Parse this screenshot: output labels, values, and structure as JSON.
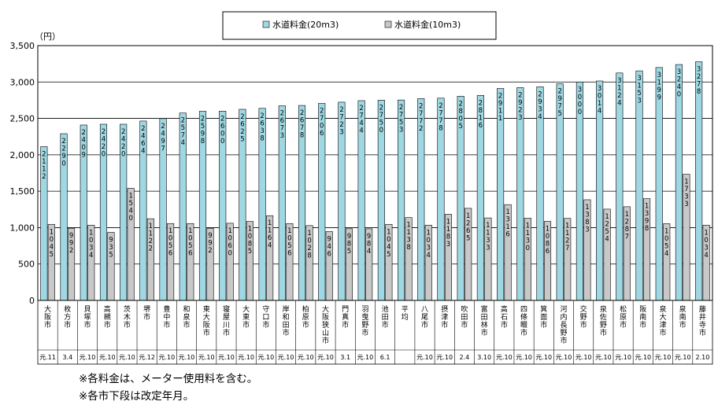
{
  "chart_data": {
    "type": "bar",
    "y_unit": "（円）",
    "ylim": [
      0,
      3500
    ],
    "yticks": [
      0,
      500,
      1000,
      1500,
      2000,
      2500,
      3000,
      3500
    ],
    "ytick_labels": [
      "0",
      "500",
      "1,000",
      "1,500",
      "2,000",
      "2,500",
      "3,000",
      "3,500"
    ],
    "grid": true,
    "legend_position": "top",
    "categories": [
      "大阪市",
      "枚方市",
      "貝塚市",
      "高槻市",
      "茨木市",
      "堺市",
      "豊中市",
      "和泉市",
      "東大阪市",
      "寝屋川市",
      "大東市",
      "守口市",
      "岸和田市",
      "柏原市",
      "大阪狭山市",
      "門真市",
      "羽曳野市",
      "池田市",
      "平均",
      "八尾市",
      "摂津市",
      "吹田市",
      "富田林市",
      "高石市",
      "四條畷市",
      "箕面市",
      "河内長野市",
      "交野市",
      "泉佐野市",
      "松原市",
      "阪南市",
      "泉大津市",
      "泉南市",
      "藤井寺市"
    ],
    "revision_dates": [
      "元.11",
      "3.4",
      "元.10",
      "元.10",
      "元.10",
      "元.12",
      "元.10",
      "元.10",
      "元.10",
      "元.10",
      "元.10",
      "元.10",
      "元.10",
      "元.10",
      "元.10",
      "3.1",
      "元.10",
      "6.1",
      "",
      "元.10",
      "元.10",
      "2.4",
      "3.10",
      "元.10",
      "元.10",
      "元.10",
      "元.10",
      "元.10",
      "元.10",
      "元.10",
      "元.10",
      "元.10",
      "元.10",
      "2.10"
    ],
    "series": [
      {
        "name": "水道料金(20m3)",
        "color": "#9fd8e3",
        "values": [
          2112,
          2290,
          2409,
          2420,
          2420,
          2464,
          2497,
          2574,
          2598,
          2600,
          2625,
          2638,
          2673,
          2678,
          2706,
          2723,
          2744,
          2750,
          2753,
          2772,
          2778,
          2805,
          2816,
          2911,
          2923,
          2934,
          2975,
          3000,
          3014,
          3124,
          3153,
          3199,
          3240,
          3278
        ]
      },
      {
        "name": "水道料金(10m3)",
        "color": "#c8c8c8",
        "values": [
          1045,
          992,
          1034,
          935,
          1540,
          1122,
          1056,
          1056,
          992,
          1060,
          1085,
          1164,
          1056,
          1028,
          946,
          985,
          984,
          1045,
          1138,
          1034,
          1183,
          1265,
          1133,
          1316,
          1130,
          1086,
          1127,
          1383,
          1254,
          1287,
          1398,
          1054,
          1733,
          1034
        ]
      }
    ]
  },
  "notes": [
    "※各料金は、メーター使用料を含む。",
    "※各市下段は改定年月。"
  ]
}
